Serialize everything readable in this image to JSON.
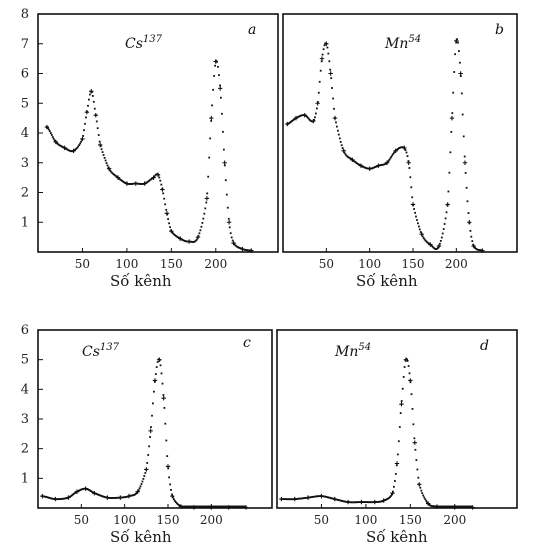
{
  "chart_data": [
    {
      "panel": "a",
      "type": "scatter",
      "title": "Cs137",
      "title_base": "Cs",
      "title_sup": "137",
      "xlabel": "Số kênh",
      "ylim": [
        0,
        8
      ],
      "xlim": [
        0,
        270
      ],
      "xticks": [
        "50",
        "100",
        "150",
        "200"
      ],
      "yticks": [
        "1",
        "2",
        "3",
        "4",
        "5",
        "6",
        "7",
        "8"
      ],
      "series": [
        {
          "x": [
            10,
            20,
            30,
            40,
            50,
            55,
            60,
            65,
            70,
            80,
            90,
            100,
            110,
            120,
            130,
            135,
            140,
            145,
            150,
            160,
            170,
            180,
            190,
            195,
            200,
            205,
            210,
            215,
            220,
            230,
            240
          ],
          "y": [
            4.2,
            3.7,
            3.5,
            3.4,
            3.8,
            4.7,
            5.4,
            4.6,
            3.6,
            2.8,
            2.5,
            2.3,
            2.3,
            2.3,
            2.5,
            2.6,
            2.1,
            1.3,
            0.7,
            0.45,
            0.35,
            0.5,
            1.8,
            4.5,
            6.4,
            5.5,
            3.0,
            1.0,
            0.3,
            0.1,
            0.05
          ]
        }
      ]
    },
    {
      "panel": "b",
      "type": "scatter",
      "title": "Mn54",
      "title_base": "Mn",
      "title_sup": "54",
      "xlabel": "Số kênh",
      "ylim": [
        0,
        8
      ],
      "xlim": [
        0,
        270
      ],
      "xticks": [
        "50",
        "100",
        "150",
        "200"
      ],
      "yticks": [],
      "series": [
        {
          "x": [
            5,
            15,
            25,
            35,
            40,
            45,
            50,
            55,
            60,
            70,
            80,
            90,
            100,
            110,
            120,
            130,
            140,
            145,
            150,
            160,
            170,
            180,
            190,
            195,
            200,
            205,
            210,
            215,
            220,
            230
          ],
          "y": [
            4.3,
            4.5,
            4.6,
            4.4,
            5.0,
            6.5,
            7.0,
            6.0,
            4.5,
            3.4,
            3.1,
            2.9,
            2.8,
            2.9,
            3.0,
            3.4,
            3.5,
            3.0,
            1.6,
            0.6,
            0.25,
            0.2,
            1.6,
            4.5,
            7.1,
            6.0,
            3.0,
            1.0,
            0.2,
            0.05
          ]
        }
      ]
    },
    {
      "panel": "c",
      "type": "scatter",
      "title": "Cs137",
      "title_base": "Cs",
      "title_sup": "137",
      "xlabel": "Số kênh",
      "ylim": [
        0,
        6
      ],
      "xlim": [
        0,
        270
      ],
      "xticks": [
        "50",
        "100",
        "150",
        "200"
      ],
      "yticks": [
        "1",
        "2",
        "3",
        "4",
        "5",
        "6"
      ],
      "series": [
        {
          "x": [
            5,
            20,
            35,
            45,
            55,
            65,
            80,
            95,
            105,
            115,
            125,
            130,
            135,
            140,
            145,
            150,
            155,
            165,
            180,
            200,
            220,
            240
          ],
          "y": [
            0.4,
            0.3,
            0.35,
            0.55,
            0.65,
            0.5,
            0.35,
            0.35,
            0.4,
            0.55,
            1.3,
            2.6,
            4.3,
            5.0,
            3.7,
            1.4,
            0.4,
            0.05,
            0.02,
            0.02,
            0.02,
            0.02
          ]
        }
      ]
    },
    {
      "panel": "d",
      "type": "scatter",
      "title": "Mn54",
      "title_base": "Mn",
      "title_sup": "54",
      "xlabel": "Số kênh",
      "ylim": [
        0,
        6
      ],
      "xlim": [
        0,
        270
      ],
      "xticks": [
        "50",
        "100",
        "150",
        "200"
      ],
      "yticks": [],
      "series": [
        {
          "x": [
            5,
            20,
            35,
            50,
            65,
            80,
            95,
            110,
            120,
            130,
            135,
            140,
            145,
            150,
            155,
            160,
            170,
            180,
            200,
            220
          ],
          "y": [
            0.3,
            0.3,
            0.35,
            0.4,
            0.3,
            0.2,
            0.2,
            0.2,
            0.25,
            0.5,
            1.5,
            3.5,
            5.0,
            4.3,
            2.2,
            0.8,
            0.15,
            0.05,
            0.02,
            0.02
          ]
        }
      ]
    }
  ]
}
